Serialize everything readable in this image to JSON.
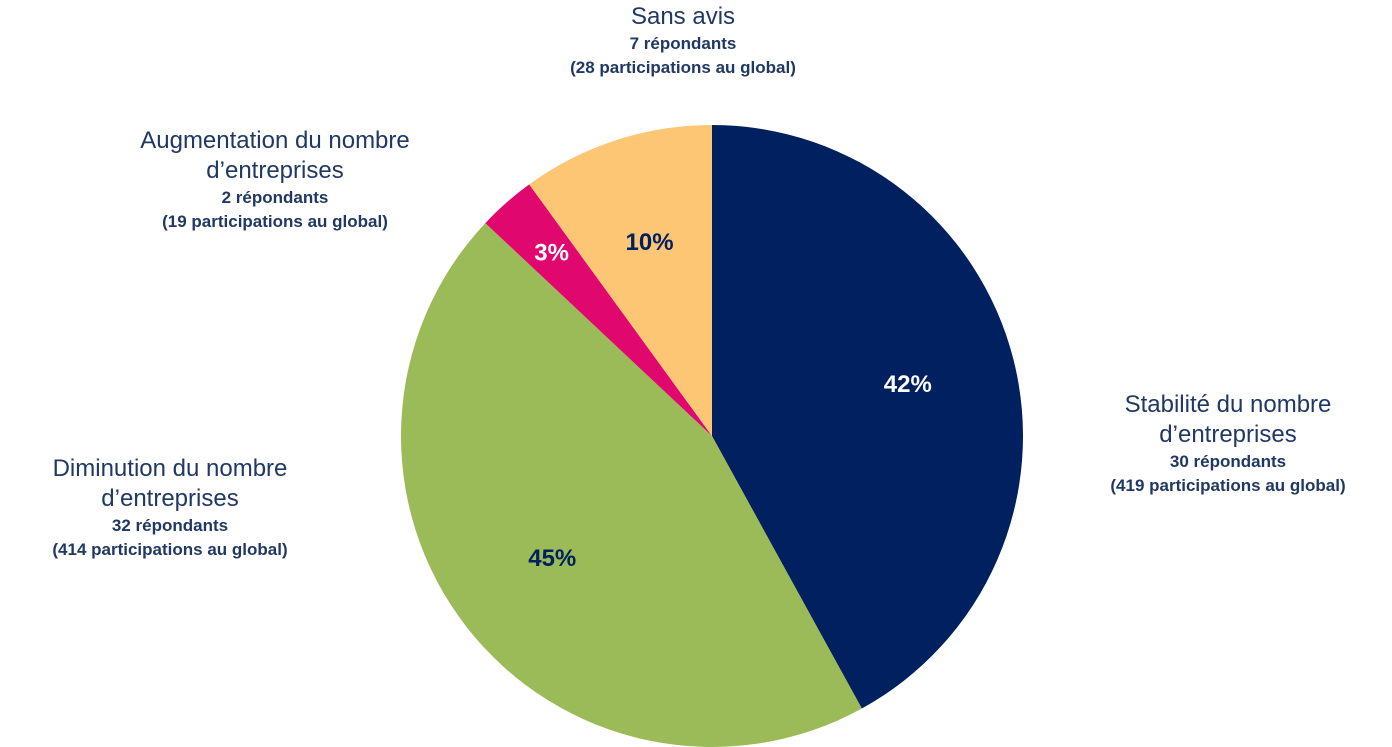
{
  "chart_data": {
    "type": "pie",
    "categories": [
      "Stabilité du nombre d’entreprises",
      "Diminution du nombre d’entreprises",
      "Augmentation du nombre d’entreprises",
      "Sans avis"
    ],
    "values": [
      42,
      45,
      3,
      10
    ],
    "value_labels": [
      "42%",
      "45%",
      "3%",
      "10%"
    ],
    "respondents": [
      "30 répondants",
      "32 répondants",
      "2 répondants",
      "7 répondants"
    ],
    "participations": [
      "(419 participations au global)",
      "(414 participations au global)",
      "(19 participations au global)",
      "(28 participations au global)"
    ],
    "colors": [
      "#002060",
      "#9bbb59",
      "#e0076e",
      "#fdc675"
    ],
    "label_colors": [
      "#ffffff",
      "#002060",
      "#ffffff",
      "#002060"
    ],
    "start_angle": 0,
    "direction": "clockwise"
  }
}
